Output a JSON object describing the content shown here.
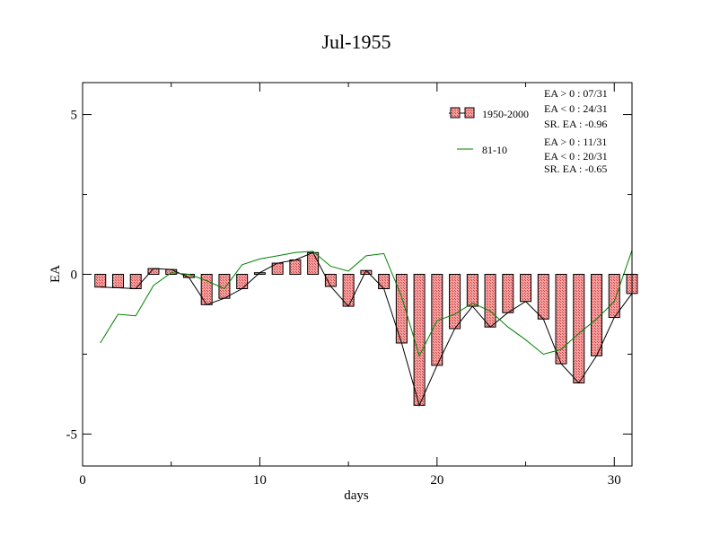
{
  "chart_data": {
    "type": "bar",
    "title": "Jul-1955",
    "xlabel": "days",
    "ylabel": "EA",
    "xlim": [
      0,
      31
    ],
    "ylim": [
      -6,
      6
    ],
    "xticks": [
      0,
      10,
      20,
      30
    ],
    "yticks": [
      -5,
      0,
      5
    ],
    "x": [
      1,
      2,
      3,
      4,
      5,
      6,
      7,
      8,
      9,
      10,
      11,
      12,
      13,
      14,
      15,
      16,
      17,
      18,
      19,
      20,
      21,
      22,
      23,
      24,
      25,
      26,
      27,
      28,
      29,
      30,
      31
    ],
    "series": [
      {
        "name": "1950-2000",
        "kind": "bar+line",
        "fill": "#f08080",
        "stroke": "#000000",
        "values": [
          -0.4,
          -0.42,
          -0.45,
          0.18,
          0.15,
          -0.1,
          -0.95,
          -0.75,
          -0.45,
          0.05,
          0.35,
          0.45,
          0.68,
          -0.38,
          -1.0,
          0.12,
          -0.45,
          -2.15,
          -4.1,
          -2.85,
          -1.7,
          -1.0,
          -1.65,
          -1.2,
          -0.85,
          -1.4,
          -2.8,
          -3.4,
          -2.55,
          -1.35,
          -0.6
        ]
      },
      {
        "name": "81-10",
        "kind": "line",
        "color": "#008000",
        "values": [
          -2.15,
          -1.25,
          -1.3,
          -0.35,
          0.05,
          0.0,
          -0.2,
          -0.45,
          0.3,
          0.48,
          0.58,
          0.68,
          0.72,
          0.25,
          0.1,
          0.58,
          0.65,
          -0.7,
          -2.55,
          -1.45,
          -1.25,
          -0.9,
          -1.15,
          -1.65,
          -2.05,
          -2.5,
          -2.35,
          -1.85,
          -1.4,
          -0.85,
          0.75
        ]
      }
    ],
    "legend": {
      "placement": "top-right",
      "stats": [
        [
          "EA > 0 : 07/31",
          "EA < 0 : 24/31",
          "SR. EA : -0.96"
        ],
        [
          "EA > 0 : 11/31",
          "EA < 0 : 20/31",
          "SR. EA : -0.65"
        ]
      ]
    },
    "grid": false
  }
}
